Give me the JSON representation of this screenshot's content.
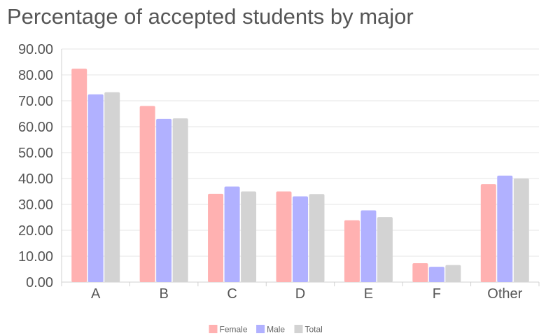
{
  "chart_data": {
    "type": "bar",
    "title": "Percentage of accepted students by major",
    "categories": [
      "A",
      "B",
      "C",
      "D",
      "E",
      "F",
      "Other"
    ],
    "series": [
      {
        "name": "Female",
        "color": "#ffb1b1",
        "values": [
          82.4,
          68.0,
          34.1,
          35.0,
          23.9,
          7.3,
          37.8
        ]
      },
      {
        "name": "Male",
        "color": "#b1b1ff",
        "values": [
          72.5,
          63.0,
          36.9,
          33.1,
          27.7,
          5.9,
          41.1
        ]
      },
      {
        "name": "Total",
        "color": "#d3d3d3",
        "values": [
          73.3,
          63.2,
          35.0,
          34.0,
          25.1,
          6.6,
          40.0
        ]
      }
    ],
    "ylim": [
      0,
      90
    ],
    "yticks": [
      "0.00",
      "10.00",
      "20.00",
      "30.00",
      "40.00",
      "50.00",
      "60.00",
      "70.00",
      "80.00",
      "90.00"
    ],
    "xlabel": "",
    "ylabel": "",
    "grid": true,
    "legend_position": "bottom"
  }
}
